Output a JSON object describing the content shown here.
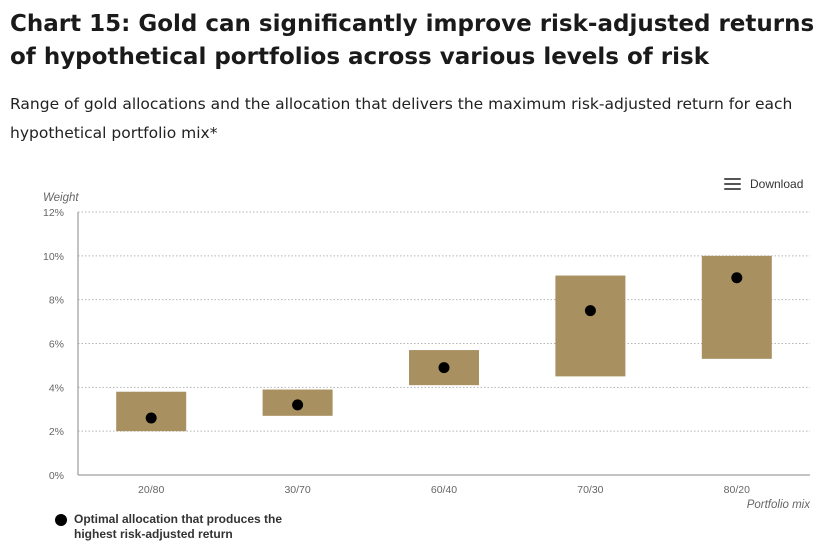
{
  "page": {
    "title": "Chart 15: Gold can significantly improve risk-adjusted returns of hypothetical portfolios across various levels of risk",
    "subtitle": "Range of gold allocations and the allocation that delivers the maximum risk-adjusted return for each hypothetical portfolio mix*"
  },
  "toolbar": {
    "download_label": "Download",
    "download_icon": "menu-icon"
  },
  "legend": {
    "label": "Optimal allocation that produces the highest risk-adjusted return",
    "marker_color": "#000000"
  },
  "colors": {
    "bar": "#A89060",
    "dot": "#000000",
    "grid": "#b5b5b5",
    "axis": "#888888",
    "text": "#666666"
  },
  "chart_data": {
    "type": "floating-bar",
    "title": "Chart 15: Gold can significantly improve risk-adjusted returns of hypothetical portfolios across various levels of risk",
    "ylabel": "Weight",
    "xlabel": "Portfolio mix",
    "ylim": [
      0,
      12
    ],
    "yticks": [
      0,
      2,
      4,
      6,
      8,
      10,
      12
    ],
    "ytick_labels": [
      "0%",
      "2%",
      "4%",
      "6%",
      "8%",
      "10%",
      "12%"
    ],
    "categories": [
      "20/80",
      "30/70",
      "60/40",
      "70/30",
      "80/20"
    ],
    "series": [
      {
        "name": "Range of gold allocations (low)",
        "values": [
          2.0,
          2.7,
          4.1,
          4.5,
          5.3
        ]
      },
      {
        "name": "Range of gold allocations (high)",
        "values": [
          3.8,
          3.9,
          5.7,
          9.1,
          10.0
        ]
      },
      {
        "name": "Optimal allocation that produces the highest risk-adjusted return",
        "values": [
          2.6,
          3.2,
          4.9,
          7.5,
          9.0
        ]
      }
    ]
  }
}
